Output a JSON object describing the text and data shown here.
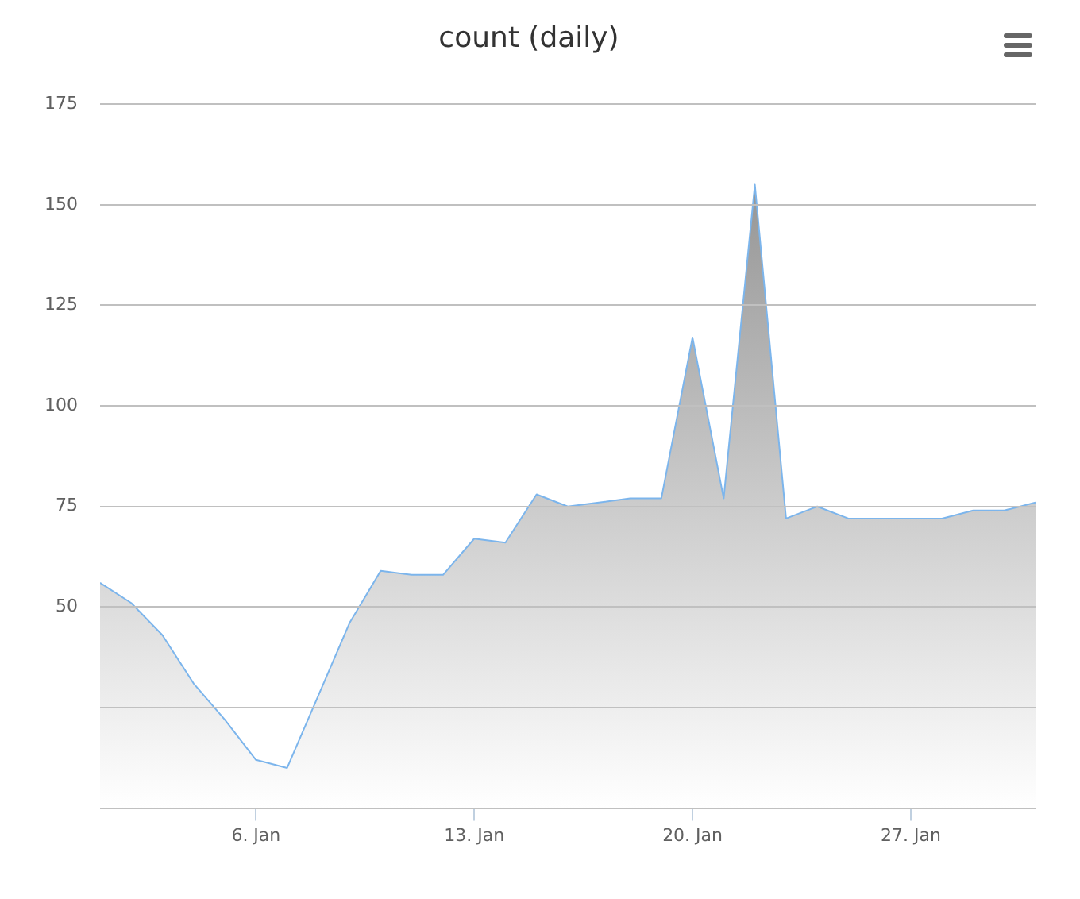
{
  "chart_data": {
    "type": "area",
    "title": "count (daily)",
    "x": [
      "--01-01",
      "--01-02",
      "--01-03",
      "--01-04",
      "--01-05",
      "--01-06",
      "--01-07",
      "--01-08",
      "--01-09",
      "--01-10",
      "--01-11",
      "--01-12",
      "--01-13",
      "--01-14",
      "--01-15",
      "--01-16",
      "--01-17",
      "--01-18",
      "--01-19",
      "--01-20",
      "--01-21",
      "--01-22",
      "--01-23",
      "--01-24",
      "--01-25",
      "--01-26",
      "--01-27",
      "--01-28",
      "--01-29",
      "--01-30",
      "--01-31"
    ],
    "series": [
      {
        "color": "#7cb5ec",
        "values": [
          56,
          51,
          43,
          31,
          22,
          12,
          10,
          28,
          46,
          59,
          58,
          58,
          67,
          66,
          78,
          75,
          76,
          77,
          77,
          117,
          77,
          155,
          72,
          75,
          72,
          72,
          72,
          72,
          74,
          74,
          76
        ]
      }
    ],
    "xlim": [
      "--01-01",
      "--01-31"
    ],
    "xticks": [
      {
        "value": "--01-06",
        "label": "6. Jan"
      },
      {
        "value": "--01-13",
        "label": "13. Jan"
      },
      {
        "value": "--01-20",
        "label": "20. Jan"
      },
      {
        "value": "--01-27",
        "label": "27. Jan"
      }
    ],
    "ylim": [
      0,
      175
    ],
    "yticks": [
      {
        "value": 0,
        "label": null
      },
      {
        "value": 25,
        "label": null
      },
      50,
      75,
      100,
      125,
      150,
      175
    ],
    "grid": "y",
    "legend": false,
    "marker": "none"
  }
}
